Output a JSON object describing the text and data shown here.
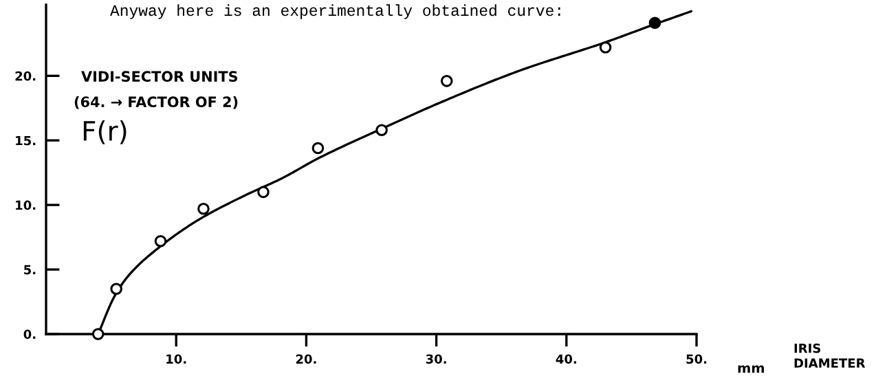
{
  "chart_data": {
    "type": "scatter",
    "title": "Anyway here is an experimentally obtained curve:",
    "ylabel": "F(r)",
    "annotations": [
      "VIDI-SECTOR UNITS",
      "(64. → FACTOR OF 2)",
      "mm",
      "IRIS\nDIAMETER"
    ],
    "series": [
      {
        "marker": "circle",
        "color": "#000000",
        "colors": [
          "#ffffff",
          "#ffffff",
          "#ffffff",
          "#ffffff",
          "#ffffff",
          "#ffffff",
          "#ffffff",
          "#ffffff",
          "#ffffff",
          "#000000"
        ],
        "x": [
          4.0,
          5.4,
          8.8,
          12.1,
          16.7,
          20.9,
          25.8,
          30.8,
          43.0,
          46.8
        ],
        "values": [
          0.0,
          3.5,
          7.2,
          9.7,
          11.0,
          14.4,
          15.8,
          19.6,
          22.2,
          24.1
        ]
      },
      {
        "type": "line",
        "color": "#000000",
        "x": [
          4.0,
          5.3,
          6.4,
          8.8,
          11.8,
          15.0,
          18.2,
          20.9,
          25.8,
          30.0,
          36.4,
          43.0,
          46.8,
          49.6
        ],
        "values": [
          0.0,
          3.0,
          4.6,
          6.8,
          8.9,
          10.6,
          12.1,
          13.6,
          15.9,
          17.8,
          20.4,
          22.6,
          24.0,
          25.0
        ]
      }
    ],
    "xlim": [
      0,
      50
    ],
    "ylim": [
      0,
      25.5
    ],
    "xticks": [
      {
        "value": 10,
        "label": "10."
      },
      {
        "value": 20,
        "label": "20."
      },
      {
        "value": 30,
        "label": "30."
      },
      {
        "value": 40,
        "label": "40."
      },
      {
        "value": 50,
        "label": "50."
      }
    ],
    "yticks": [
      {
        "value": 0,
        "label": "0."
      },
      {
        "value": 5,
        "label": "5."
      },
      {
        "value": 10,
        "label": "10."
      },
      {
        "value": 15,
        "label": "15."
      },
      {
        "value": 20,
        "label": "20."
      }
    ]
  }
}
